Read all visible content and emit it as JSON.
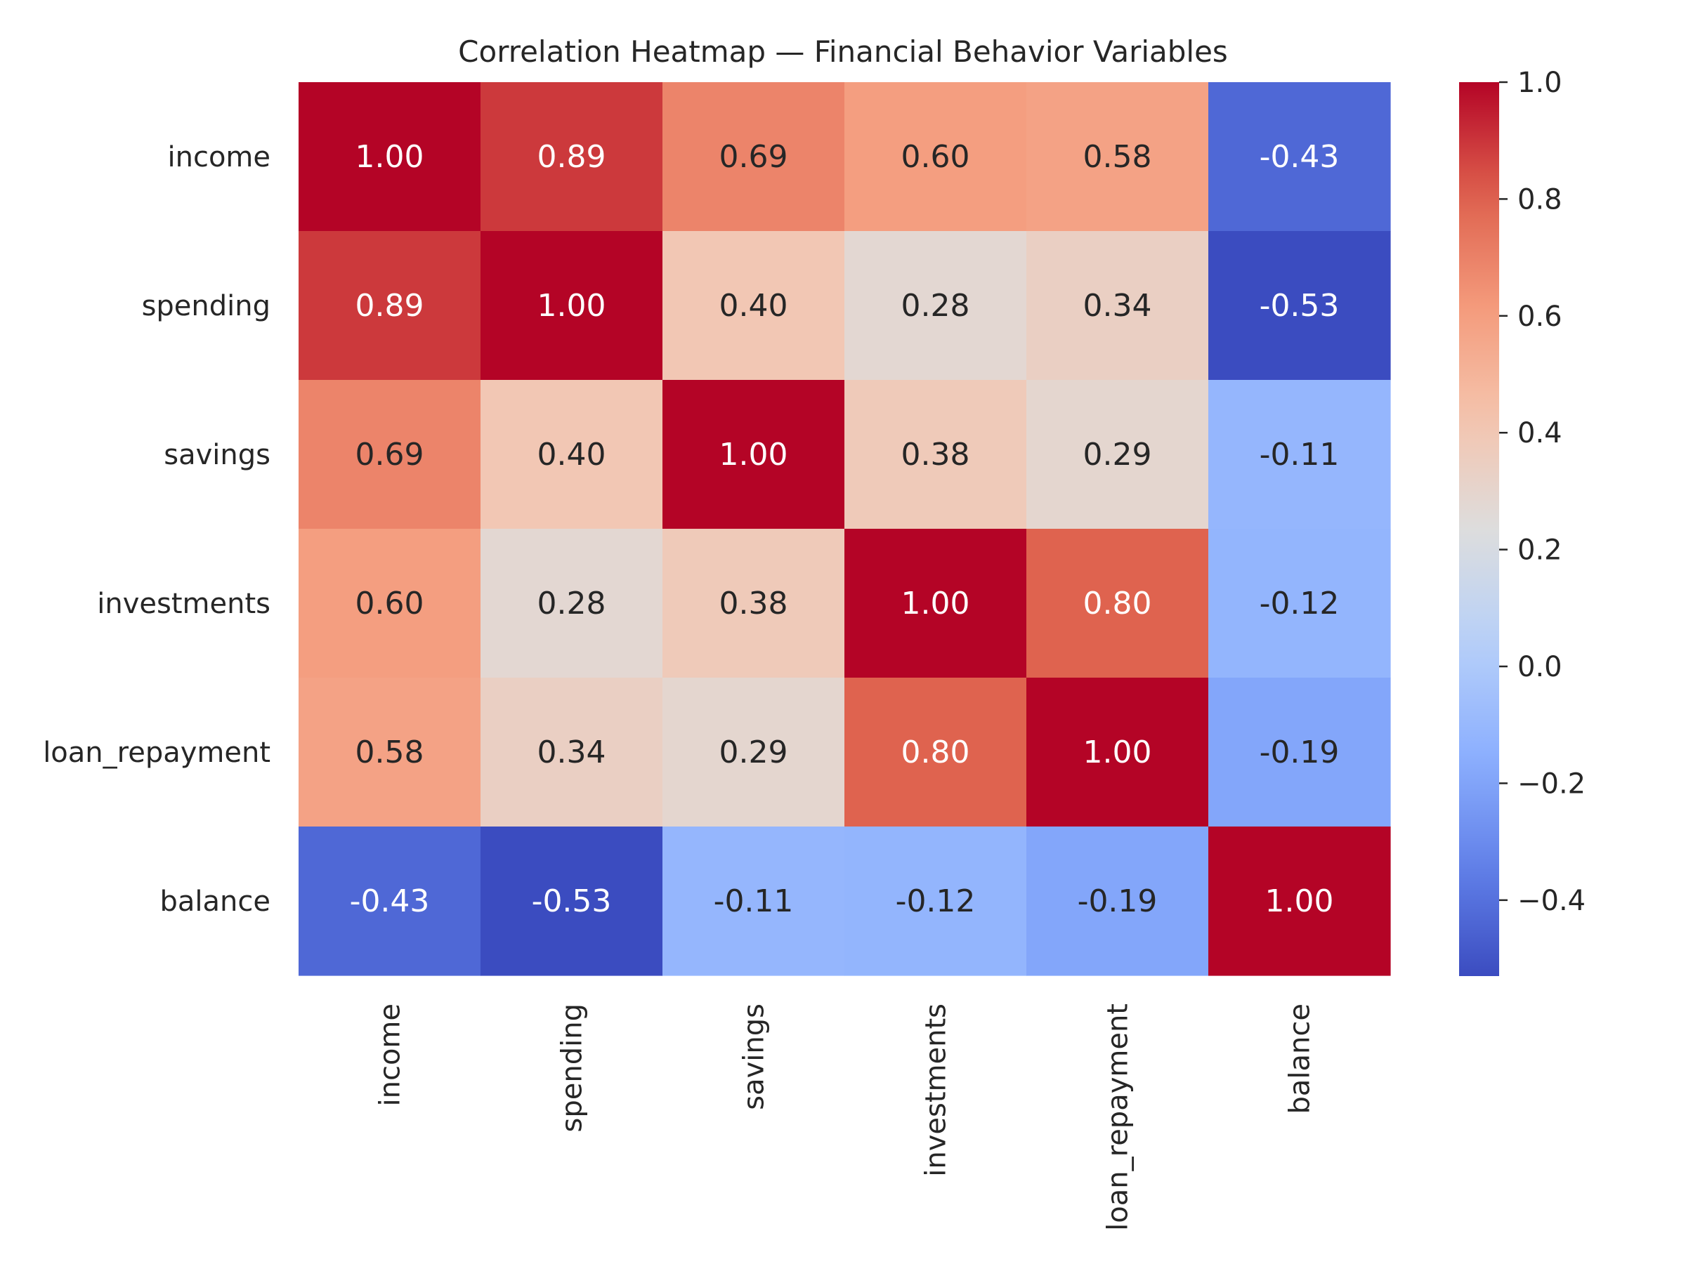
{
  "chart_data": {
    "type": "heatmap",
    "title": "Correlation Heatmap — Financial Behavior Variables",
    "rows": [
      "income",
      "spending",
      "savings",
      "investments",
      "loan_repayment",
      "balance"
    ],
    "columns": [
      "income",
      "spending",
      "savings",
      "investments",
      "loan_repayment",
      "balance"
    ],
    "values": [
      [
        1.0,
        0.89,
        0.69,
        0.6,
        0.58,
        -0.43
      ],
      [
        0.89,
        1.0,
        0.4,
        0.28,
        0.34,
        -0.53
      ],
      [
        0.69,
        0.4,
        1.0,
        0.38,
        0.29,
        -0.11
      ],
      [
        0.6,
        0.28,
        0.38,
        1.0,
        0.8,
        -0.12
      ],
      [
        0.58,
        0.34,
        0.29,
        0.8,
        1.0,
        -0.19
      ],
      [
        -0.43,
        -0.53,
        -0.11,
        -0.12,
        -0.19,
        1.0
      ]
    ],
    "annotations": [
      [
        "1.00",
        "0.89",
        "0.69",
        "0.60",
        "0.58",
        "-0.43"
      ],
      [
        "0.89",
        "1.00",
        "0.40",
        "0.28",
        "0.34",
        "-0.53"
      ],
      [
        "0.69",
        "0.40",
        "1.00",
        "0.38",
        "0.29",
        "-0.11"
      ],
      [
        "0.60",
        "0.28",
        "0.38",
        "1.00",
        "0.80",
        "-0.12"
      ],
      [
        "0.58",
        "0.34",
        "0.29",
        "0.80",
        "1.00",
        "-0.19"
      ],
      [
        "-0.43",
        "-0.53",
        "-0.11",
        "-0.12",
        "-0.19",
        "1.00"
      ]
    ],
    "colormap": "coolwarm",
    "vmin": -0.53,
    "vmax": 1.0,
    "colorbar_ticks": [
      1.0,
      0.8,
      0.6,
      0.4,
      0.2,
      0.0,
      -0.2,
      -0.4
    ],
    "colorbar_tick_labels": [
      "1.0",
      "0.8",
      "0.6",
      "0.4",
      "0.2",
      "0.0",
      "−0.2",
      "−0.4"
    ]
  }
}
